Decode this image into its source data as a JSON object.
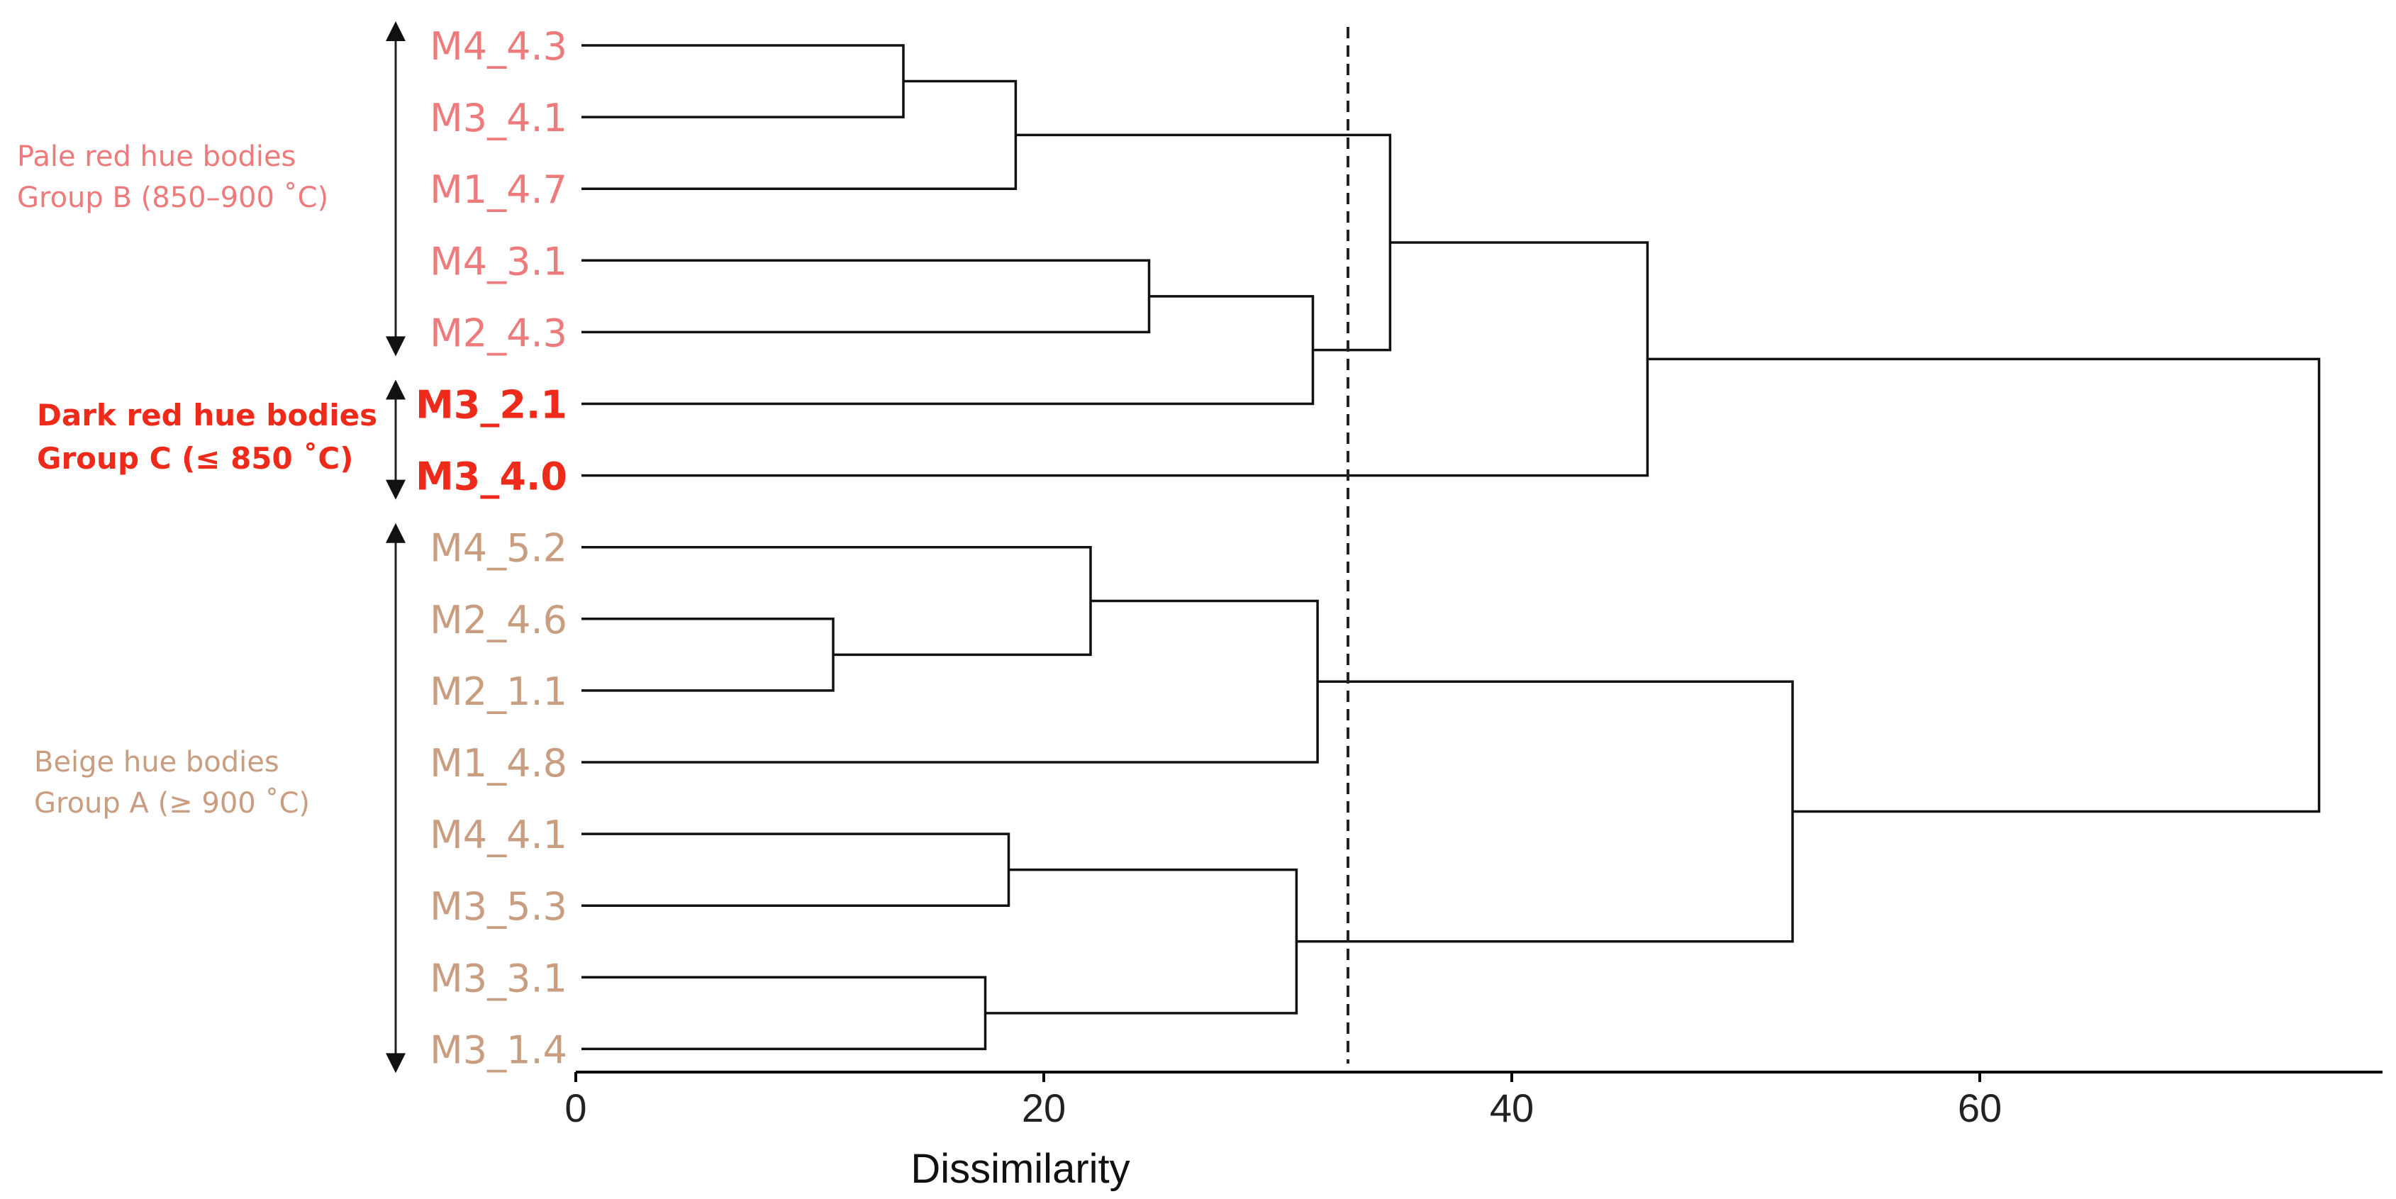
{
  "chart_data": {
    "type": "dendrogram",
    "xlabel": "Dissimilarity",
    "xlim": [
      0,
      76
    ],
    "xticks": [
      0,
      20,
      40,
      60
    ],
    "cut_threshold": 33,
    "leaves": [
      {
        "label": "M4_4.3",
        "group": "B"
      },
      {
        "label": "M3_4.1",
        "group": "B"
      },
      {
        "label": "M1_4.7",
        "group": "B"
      },
      {
        "label": "M4_3.1",
        "group": "B"
      },
      {
        "label": "M2_4.3",
        "group": "B"
      },
      {
        "label": "M3_2.1",
        "group": "C"
      },
      {
        "label": "M3_4.0",
        "group": "C"
      },
      {
        "label": "M4_5.2",
        "group": "A"
      },
      {
        "label": "M2_4.6",
        "group": "A"
      },
      {
        "label": "M2_1.1",
        "group": "A"
      },
      {
        "label": "M1_4.8",
        "group": "A"
      },
      {
        "label": "M4_4.1",
        "group": "A"
      },
      {
        "label": "M3_5.3",
        "group": "A"
      },
      {
        "label": "M3_3.1",
        "group": "A"
      },
      {
        "label": "M3_1.4",
        "group": "A"
      }
    ],
    "merges": [
      {
        "left": "L0",
        "right": "L1",
        "height": 14
      },
      {
        "left": "m0",
        "right": "L2",
        "height": 18.8
      },
      {
        "left": "L3",
        "right": "L4",
        "height": 24.5
      },
      {
        "left": "m2",
        "right": "L5",
        "height": 31.5
      },
      {
        "left": "m1",
        "right": "m3",
        "height": 34.8
      },
      {
        "left": "m4",
        "right": "L6",
        "height": 45.8
      },
      {
        "left": "L8",
        "right": "L9",
        "height": 11
      },
      {
        "left": "L7",
        "right": "m6",
        "height": 22
      },
      {
        "left": "m7",
        "right": "L10",
        "height": 31.7
      },
      {
        "left": "L11",
        "right": "L12",
        "height": 18.5
      },
      {
        "left": "L13",
        "right": "L14",
        "height": 17.5
      },
      {
        "left": "m9",
        "right": "m10",
        "height": 30.8
      },
      {
        "left": "m8",
        "right": "m11",
        "height": 52
      },
      {
        "left": "m5",
        "right": "m12",
        "height": 74.5
      }
    ],
    "groups": [
      {
        "id": "B",
        "line1": "Pale red hue bodies",
        "line2": "Group B (850–900 ˚C)",
        "color": "#ee7b7b",
        "first": 0,
        "last": 4
      },
      {
        "id": "C",
        "line1": "Dark red hue bodies",
        "line2": "Group C (≤ 850 ˚C)",
        "color": "#ee2a1a",
        "first": 5,
        "last": 6
      },
      {
        "id": "A",
        "line1": "Beige hue bodies",
        "line2": "Group A (≥ 900 ˚C)",
        "color": "#c99d80",
        "first": 7,
        "last": 14
      }
    ]
  }
}
